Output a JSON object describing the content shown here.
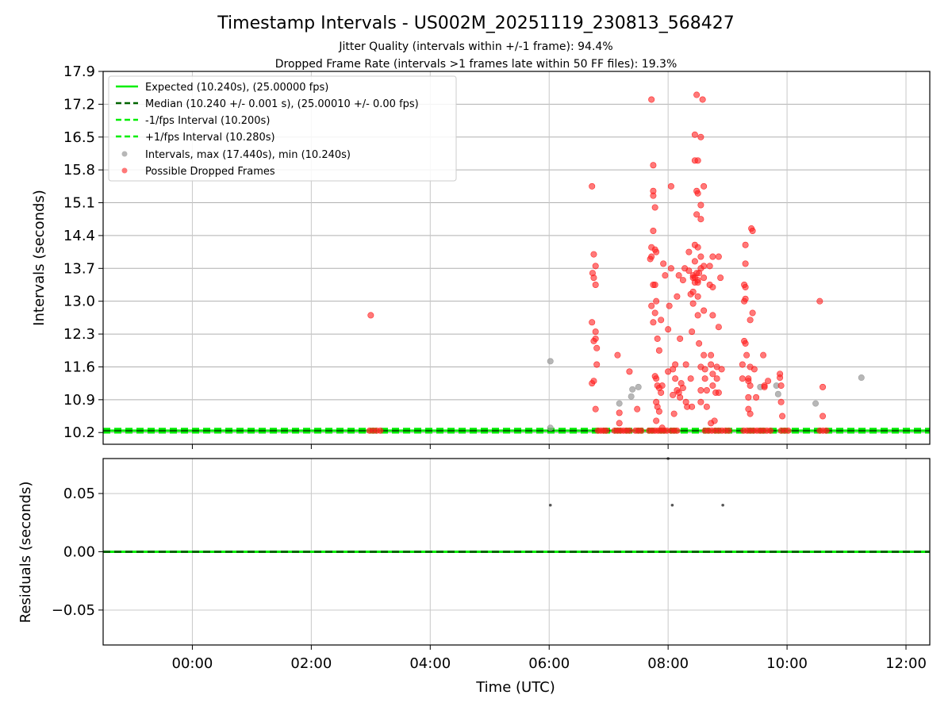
{
  "chart_data": [
    {
      "type": "scatter",
      "title": "Timestamp Intervals - US002M_20251119_230813_568427",
      "subtitle_lines": [
        "Jitter Quality (intervals within +/-1 frame): 94.4%",
        "Dropped Frame Rate (intervals >1 frames late within 50 FF files): 19.3%"
      ],
      "ylabel": "Intervals (seconds)",
      "xlabel": "",
      "xlim_hours": [
        -1.5,
        12.4
      ],
      "ylim": [
        9.95,
        17.9
      ],
      "yticks": [
        10.2,
        10.9,
        11.6,
        12.3,
        13.0,
        13.7,
        14.4,
        15.1,
        15.8,
        16.5,
        17.2,
        17.9
      ],
      "ytick_labels": [
        "10.2",
        "10.9",
        "11.6",
        "12.3",
        "13.0",
        "13.7",
        "14.4",
        "15.1",
        "15.8",
        "16.5",
        "17.2",
        "17.9"
      ],
      "grid": "both",
      "legend_position": "top-left",
      "reference_lines": [
        {
          "name": "Expected (10.240s), (25.00000 fps)",
          "y": 10.24,
          "style": "solid",
          "color": "#00ee00"
        },
        {
          "name": "Median (10.240 +/- 0.001 s), (25.00010 +/- 0.00 fps)",
          "y": 10.24,
          "style": "dashed",
          "color": "#006400"
        },
        {
          "name": "-1/fps Interval (10.200s)",
          "y": 10.2,
          "style": "dashed",
          "color": "#00ee00"
        },
        {
          "name": "+1/fps Interval (10.280s)",
          "y": 10.28,
          "style": "dashed",
          "color": "#00ee00"
        }
      ],
      "series": [
        {
          "name": "Intervals, max (17.440s), min (10.240s)",
          "color": "#999999",
          "points": [
            [
              6.02,
              11.72
            ],
            [
              6.02,
              10.3
            ],
            [
              7.18,
              10.82
            ],
            [
              7.38,
              10.97
            ],
            [
              7.4,
              11.12
            ],
            [
              7.5,
              11.17
            ],
            [
              9.55,
              11.17
            ],
            [
              9.82,
              11.2
            ],
            [
              9.85,
              11.02
            ],
            [
              10.48,
              10.82
            ],
            [
              11.25,
              11.37
            ]
          ]
        },
        {
          "name": "Possible Dropped Frames",
          "color": "#ff2020",
          "points": [
            [
              3.0,
              12.7
            ],
            [
              10.55,
              13.0
            ],
            [
              10.6,
              11.17
            ],
            [
              10.6,
              10.55
            ],
            [
              6.72,
              15.45
            ],
            [
              6.75,
              14.0
            ],
            [
              6.73,
              13.6
            ],
            [
              6.75,
              13.5
            ],
            [
              6.78,
              13.35
            ],
            [
              6.78,
              13.75
            ],
            [
              6.72,
              12.55
            ],
            [
              6.78,
              12.35
            ],
            [
              6.78,
              12.2
            ],
            [
              6.75,
              12.15
            ],
            [
              6.8,
              12.0
            ],
            [
              6.8,
              11.65
            ],
            [
              6.75,
              11.3
            ],
            [
              6.72,
              11.25
            ],
            [
              6.78,
              10.7
            ],
            [
              7.15,
              11.85
            ],
            [
              7.18,
              10.62
            ],
            [
              7.18,
              10.4
            ],
            [
              7.35,
              11.5
            ],
            [
              7.48,
              10.7
            ],
            [
              7.72,
              17.3
            ],
            [
              7.75,
              15.9
            ],
            [
              7.75,
              15.35
            ],
            [
              7.75,
              15.25
            ],
            [
              7.78,
              15.0
            ],
            [
              7.75,
              14.5
            ],
            [
              7.72,
              14.15
            ],
            [
              7.72,
              13.95
            ],
            [
              7.7,
              13.9
            ],
            [
              7.78,
              14.1
            ],
            [
              7.8,
              14.05
            ],
            [
              7.75,
              13.35
            ],
            [
              7.78,
              13.35
            ],
            [
              7.8,
              13.0
            ],
            [
              7.72,
              12.9
            ],
            [
              7.78,
              12.75
            ],
            [
              7.75,
              12.55
            ],
            [
              7.82,
              12.2
            ],
            [
              7.85,
              11.95
            ],
            [
              7.78,
              11.4
            ],
            [
              7.8,
              11.35
            ],
            [
              7.82,
              11.2
            ],
            [
              7.85,
              11.15
            ],
            [
              7.8,
              10.85
            ],
            [
              7.82,
              10.75
            ],
            [
              7.85,
              10.65
            ],
            [
              7.8,
              10.45
            ],
            [
              7.9,
              10.3
            ],
            [
              7.9,
              11.2
            ],
            [
              7.88,
              11.05
            ],
            [
              7.92,
              13.8
            ],
            [
              7.95,
              13.55
            ],
            [
              7.88,
              12.6
            ],
            [
              8.0,
              12.4
            ],
            [
              8.0,
              11.5
            ],
            [
              8.02,
              12.9
            ],
            [
              8.05,
              15.45
            ],
            [
              8.05,
              13.7
            ],
            [
              8.08,
              11.55
            ],
            [
              8.08,
              11.0
            ],
            [
              8.1,
              10.6
            ],
            [
              8.12,
              11.65
            ],
            [
              8.12,
              11.35
            ],
            [
              8.15,
              13.1
            ],
            [
              8.15,
              11.1
            ],
            [
              8.18,
              13.55
            ],
            [
              8.18,
              11.05
            ],
            [
              8.2,
              12.2
            ],
            [
              8.2,
              10.95
            ],
            [
              8.22,
              11.25
            ],
            [
              8.25,
              13.45
            ],
            [
              8.25,
              11.15
            ],
            [
              8.28,
              13.7
            ],
            [
              8.3,
              11.65
            ],
            [
              8.3,
              10.85
            ],
            [
              8.32,
              10.75
            ],
            [
              8.35,
              14.05
            ],
            [
              8.35,
              13.65
            ],
            [
              8.38,
              11.35
            ],
            [
              8.38,
              13.15
            ],
            [
              8.4,
              12.35
            ],
            [
              8.4,
              10.75
            ],
            [
              8.42,
              13.5
            ],
            [
              8.42,
              13.55
            ],
            [
              8.42,
              13.2
            ],
            [
              8.42,
              12.95
            ],
            [
              8.45,
              16.55
            ],
            [
              8.45,
              16.0
            ],
            [
              8.45,
              14.2
            ],
            [
              8.45,
              13.85
            ],
            [
              8.45,
              13.5
            ],
            [
              8.45,
              13.4
            ],
            [
              8.48,
              17.4
            ],
            [
              8.48,
              15.35
            ],
            [
              8.48,
              14.85
            ],
            [
              8.48,
              13.6
            ],
            [
              8.5,
              16.0
            ],
            [
              8.5,
              15.3
            ],
            [
              8.5,
              14.15
            ],
            [
              8.5,
              13.45
            ],
            [
              8.5,
              13.4
            ],
            [
              8.5,
              13.1
            ],
            [
              8.5,
              12.7
            ],
            [
              8.52,
              13.6
            ],
            [
              8.52,
              12.1
            ],
            [
              8.55,
              16.5
            ],
            [
              8.55,
              15.05
            ],
            [
              8.55,
              14.75
            ],
            [
              8.55,
              13.95
            ],
            [
              8.55,
              13.7
            ],
            [
              8.55,
              11.6
            ],
            [
              8.55,
              11.1
            ],
            [
              8.55,
              10.85
            ],
            [
              8.58,
              17.3
            ],
            [
              8.6,
              15.45
            ],
            [
              8.6,
              13.75
            ],
            [
              8.6,
              13.5
            ],
            [
              8.6,
              12.8
            ],
            [
              8.6,
              11.85
            ],
            [
              8.62,
              11.55
            ],
            [
              8.62,
              11.35
            ],
            [
              8.65,
              11.1
            ],
            [
              8.65,
              10.75
            ],
            [
              8.7,
              13.75
            ],
            [
              8.7,
              13.35
            ],
            [
              8.72,
              11.85
            ],
            [
              8.72,
              11.65
            ],
            [
              8.72,
              10.4
            ],
            [
              8.75,
              13.95
            ],
            [
              8.75,
              13.3
            ],
            [
              8.75,
              12.7
            ],
            [
              8.75,
              11.45
            ],
            [
              8.75,
              11.2
            ],
            [
              8.78,
              10.45
            ],
            [
              8.8,
              11.05
            ],
            [
              8.82,
              11.6
            ],
            [
              8.82,
              11.35
            ],
            [
              8.85,
              13.95
            ],
            [
              8.85,
              12.45
            ],
            [
              8.85,
              11.05
            ],
            [
              8.88,
              13.5
            ],
            [
              8.9,
              11.55
            ],
            [
              9.25,
              11.65
            ],
            [
              9.25,
              11.35
            ],
            [
              9.28,
              13.35
            ],
            [
              9.28,
              13.0
            ],
            [
              9.28,
              12.15
            ],
            [
              9.3,
              14.2
            ],
            [
              9.3,
              13.8
            ],
            [
              9.3,
              13.3
            ],
            [
              9.3,
              13.05
            ],
            [
              9.3,
              12.1
            ],
            [
              9.32,
              11.85
            ],
            [
              9.35,
              11.35
            ],
            [
              9.35,
              11.3
            ],
            [
              9.35,
              10.95
            ],
            [
              9.35,
              10.7
            ],
            [
              9.38,
              12.6
            ],
            [
              9.38,
              11.6
            ],
            [
              9.38,
              11.2
            ],
            [
              9.38,
              10.6
            ],
            [
              9.4,
              14.55
            ],
            [
              9.42,
              14.5
            ],
            [
              9.42,
              12.75
            ],
            [
              9.45,
              11.55
            ],
            [
              9.48,
              10.95
            ],
            [
              9.6,
              11.85
            ],
            [
              9.62,
              11.2
            ],
            [
              9.62,
              11.17
            ],
            [
              9.68,
              11.3
            ],
            [
              9.88,
              11.45
            ],
            [
              9.88,
              11.37
            ],
            [
              9.9,
              11.2
            ],
            [
              9.9,
              10.85
            ],
            [
              9.92,
              10.55
            ]
          ],
          "dropped_runs": [
            [
              2.98,
              3.16
            ],
            [
              6.82,
              6.96
            ],
            [
              7.1,
              7.35
            ],
            [
              7.45,
              7.55
            ],
            [
              7.68,
              7.98
            ],
            [
              8.05,
              8.15
            ],
            [
              8.62,
              9.02
            ],
            [
              9.27,
              9.55
            ],
            [
              9.6,
              9.72
            ],
            [
              9.9,
              10.02
            ],
            [
              10.55,
              10.66
            ]
          ]
        }
      ]
    },
    {
      "type": "scatter",
      "title": "",
      "ylabel": "Residuals (seconds)",
      "xlabel": "Time (UTC)",
      "xlim_hours": [
        -1.5,
        12.4
      ],
      "ylim": [
        -0.08,
        0.08
      ],
      "yticks": [
        0.05,
        0.0,
        -0.05
      ],
      "ytick_labels": [
        "0.05",
        "0.00",
        "−0.05"
      ],
      "xticks_hours": [
        0,
        2,
        4,
        6,
        8,
        10,
        12
      ],
      "xtick_labels": [
        "00:00",
        "02:00",
        "04:00",
        "06:00",
        "08:00",
        "10:00",
        "12:00"
      ],
      "grid": "both",
      "reference_lines": [
        {
          "y": 0.0,
          "style": "solid",
          "color": "#00ee00"
        },
        {
          "y": 0.0,
          "style": "dashed",
          "color": "#006400"
        }
      ],
      "series": [
        {
          "color": "#555555",
          "points": [
            [
              6.02,
              0.04
            ],
            [
              8.07,
              0.04
            ],
            [
              8.92,
              0.04
            ],
            [
              8.0,
              0.08
            ]
          ]
        }
      ]
    }
  ]
}
